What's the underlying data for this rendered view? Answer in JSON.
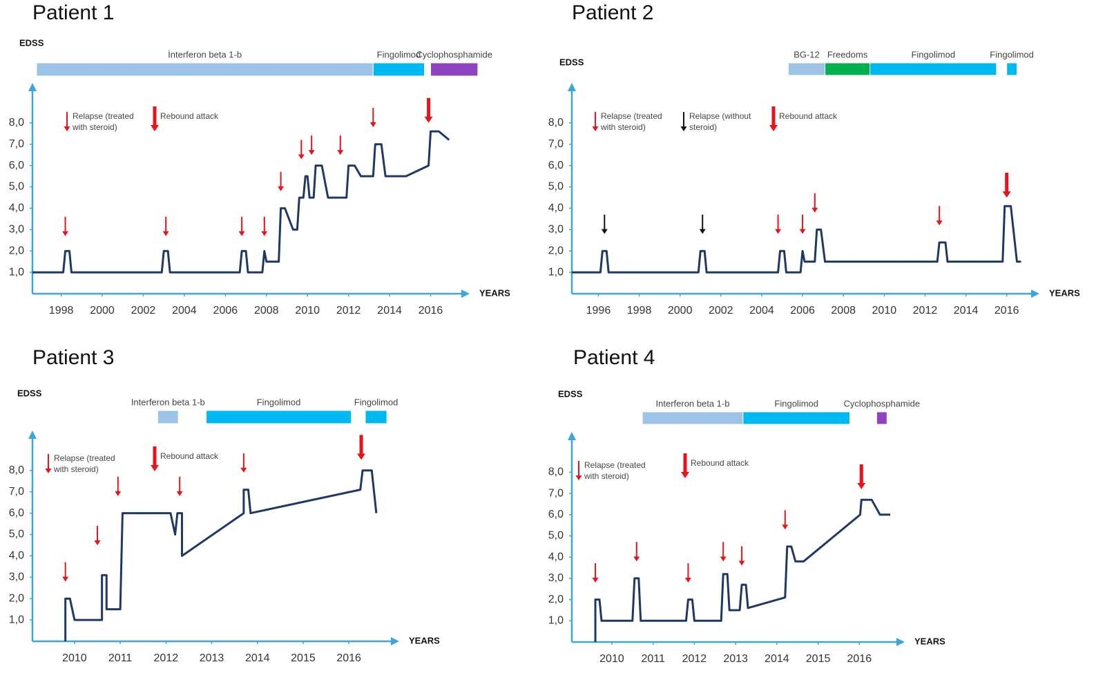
{
  "chart_data": [
    {
      "type": "line",
      "title": "Patient 1",
      "ylabel": "EDSS",
      "xlabel": "YEARS",
      "xlim": [
        1996.6,
        2017.9
      ],
      "ylim": [
        0,
        9.87
      ],
      "xticks": [
        1998,
        2000,
        2002,
        2004,
        2006,
        2008,
        2010,
        2012,
        2014,
        2016
      ],
      "yticks": [
        {
          "value": 1,
          "label": "1,0"
        },
        {
          "value": 2,
          "label": "2,0"
        },
        {
          "value": 3,
          "label": "3,0"
        },
        {
          "value": 4,
          "label": "4,0"
        },
        {
          "value": 5,
          "label": "5,0"
        },
        {
          "value": 6,
          "label": "6,0"
        },
        {
          "value": 7,
          "label": "7,0"
        },
        {
          "value": 8,
          "label": "8,0"
        }
      ],
      "treatments": [
        {
          "name": "İnterferon beta 1-b",
          "color": "#9dc3e6",
          "start": 1996.8,
          "end": 2013.2
        },
        {
          "name": "Fingolimod",
          "color": "#00b8f0",
          "start": 2013.2,
          "end": 2015.7
        },
        {
          "name": "Cyclophosphamide",
          "color": "#8e44c0",
          "start": 2016.0,
          "end": 2018.3
        }
      ],
      "events": [
        {
          "name": "Relapse (treated with steroid)",
          "color": "#e8141b",
          "style": "thin",
          "x": [
            1998.2,
            2003.1,
            2006.8,
            2007.9,
            2008.7,
            2009.7,
            2010.2,
            2011.6,
            2013.2
          ],
          "y": [
            2.7,
            2.7,
            2.7,
            2.7,
            4.8,
            6.3,
            6.5,
            6.5,
            7.8
          ]
        },
        {
          "name": "Rebound attack",
          "color": "#e8141b",
          "style": "thick",
          "x": [
            2015.9
          ],
          "y": [
            8.0
          ]
        }
      ],
      "series": [
        {
          "color": "#1f3864",
          "x": [
            1996.6,
            1998.1,
            1998.2,
            1998.4,
            1998.5,
            2002.9,
            2003,
            2003.2,
            2003.3,
            2006.7,
            2006.8,
            2007,
            2007.1,
            2007.8,
            2007.9,
            2008,
            2008.6,
            2008.7,
            2008.9,
            2009.3,
            2009.5,
            2009.6,
            2009.8,
            2009.9,
            2010,
            2010.1,
            2010.3,
            2010.4,
            2010.7,
            2011,
            2011.9,
            2012,
            2012.3,
            2012.6,
            2013.2,
            2013.3,
            2013.6,
            2013.8,
            2014.8,
            2015.9,
            2016,
            2016.4,
            2016.9
          ],
          "values": [
            1,
            1,
            2,
            2,
            1,
            1,
            2,
            2,
            1,
            1,
            2,
            2,
            1,
            1,
            2,
            1.5,
            1.5,
            4,
            4,
            3,
            3,
            4.5,
            4.5,
            5.5,
            5.5,
            4.5,
            4.5,
            6,
            6,
            4.5,
            4.5,
            6,
            6,
            5.5,
            5.5,
            7,
            7,
            5.5,
            5.5,
            6,
            7.6,
            7.6,
            7.2
          ]
        }
      ]
    },
    {
      "type": "line",
      "title": "Patient 2",
      "ylabel": "EDSS",
      "xlabel": "YEARS",
      "xlim": [
        1994.7,
        2017.6
      ],
      "ylim": [
        0,
        9.87
      ],
      "xticks": [
        1996,
        1998,
        2000,
        2002,
        2004,
        2006,
        2008,
        2010,
        2012,
        2014,
        2016
      ],
      "yticks": [
        {
          "value": 1,
          "label": "1,0"
        },
        {
          "value": 2,
          "label": "2,0"
        },
        {
          "value": 3,
          "label": "3,0"
        },
        {
          "value": 4,
          "label": "4,0"
        },
        {
          "value": 5,
          "label": "5,0"
        },
        {
          "value": 6,
          "label": "6,0"
        },
        {
          "value": 7,
          "label": "7,0"
        },
        {
          "value": 8,
          "label": "8,0"
        }
      ],
      "treatments": [
        {
          "name": "BG-12",
          "color": "#9dc3e6",
          "start": 2005.3,
          "end": 2007.1
        },
        {
          "name": "Freedoms",
          "color": "#00b050",
          "start": 2007.1,
          "end": 2009.3
        },
        {
          "name": "Fingolimod",
          "color": "#00b8f0",
          "start": 2009.3,
          "end": 2015.5
        },
        {
          "name": "Fingolimod",
          "color": "#00b8f0",
          "start": 2016.0,
          "end": 2016.5
        }
      ],
      "events": [
        {
          "name": "Relapse (treated with steroid)",
          "color": "#e8141b",
          "style": "thin",
          "x": [
            2004.8,
            2006.0,
            2006.6,
            2012.7
          ],
          "y": [
            2.8,
            2.8,
            3.8,
            3.2
          ]
        },
        {
          "name": "Relapse (without steroid)",
          "color": "#111111",
          "style": "thin",
          "x": [
            1996.3,
            2001.1
          ],
          "y": [
            2.8,
            2.8
          ]
        },
        {
          "name": "Rebound attack",
          "color": "#e8141b",
          "style": "thick",
          "x": [
            2016.0
          ],
          "y": [
            4.5
          ]
        }
      ],
      "series": [
        {
          "color": "#1f3864",
          "x": [
            1994.7,
            1996.1,
            1996.2,
            1996.4,
            1996.5,
            2000.9,
            2001,
            2001.2,
            2001.3,
            2004.8,
            2004.9,
            2005.1,
            2005.2,
            2005.9,
            2006,
            2006.1,
            2006.6,
            2006.7,
            2006.9,
            2007.1,
            2012.6,
            2012.7,
            2013,
            2013.1,
            2015.8,
            2015.9,
            2016.2,
            2016.5,
            2016.7
          ],
          "values": [
            1,
            1,
            2,
            2,
            1,
            1,
            2,
            2,
            1,
            1,
            2,
            2,
            1,
            1,
            2,
            1.5,
            1.5,
            3,
            3,
            1.5,
            1.5,
            2.4,
            2.4,
            1.5,
            1.5,
            4.1,
            4.1,
            1.5,
            1.5
          ]
        }
      ]
    },
    {
      "type": "line",
      "title": "Patient 3",
      "ylabel": "EDSS",
      "xlabel": "YEARS",
      "xlim": [
        2009.08,
        2017.1
      ],
      "ylim": [
        0,
        9.87
      ],
      "xticks": [
        2010,
        2011,
        2012,
        2013,
        2014,
        2015,
        2016
      ],
      "yticks": [
        {
          "value": 1,
          "label": "1,0"
        },
        {
          "value": 2,
          "label": "2,0"
        },
        {
          "value": 3,
          "label": "3,0"
        },
        {
          "value": 4,
          "label": "4,0"
        },
        {
          "value": 5,
          "label": "5,0"
        },
        {
          "value": 6,
          "label": "6,0"
        },
        {
          "value": 7,
          "label": "7,0"
        },
        {
          "value": 8,
          "label": "8,0"
        }
      ],
      "treatments": [
        {
          "name": "Interferon beta 1-b",
          "color": "#9dc3e6",
          "start": 2011.82,
          "end": 2012.27
        },
        {
          "name": "Fingolimod",
          "color": "#00b8f0",
          "start": 2012.88,
          "end": 2016.05
        },
        {
          "name": "Fingolimod",
          "color": "#00b8f0",
          "start": 2016.36,
          "end": 2016.83
        }
      ],
      "events": [
        {
          "name": "Relapse (treated with steroid)",
          "color": "#e8141b",
          "style": "thin",
          "x": [
            2009.8,
            2010.5,
            2010.95,
            2012.3,
            2013.7
          ],
          "y": [
            2.8,
            4.5,
            6.8,
            6.8,
            7.9
          ]
        },
        {
          "name": "Rebound attack",
          "color": "#e8141b",
          "style": "thick",
          "x": [
            2016.27
          ],
          "y": [
            8.5
          ]
        }
      ],
      "series": [
        {
          "color": "#1f3864",
          "x": [
            2009.8,
            2009.8,
            2009.9,
            2010,
            2010.6,
            2010.6,
            2010.7,
            2010.7,
            2011,
            2011.05,
            2012.1,
            2012.2,
            2012.25,
            2012.35,
            2012.35,
            2013.7,
            2013.7,
            2013.8,
            2013.85,
            2016.25,
            2016.3,
            2016.5,
            2016.6
          ],
          "values": [
            0,
            2,
            2,
            1,
            1,
            3.1,
            3.1,
            1.5,
            1.5,
            6,
            6,
            5,
            6,
            6,
            4,
            6,
            7.1,
            7.1,
            6,
            7.1,
            8,
            8,
            6
          ]
        }
      ]
    },
    {
      "type": "line",
      "title": "Patient 4",
      "ylabel": "EDSS",
      "xlabel": "YEARS",
      "xlim": [
        2009.03,
        2017.1
      ],
      "ylim": [
        0,
        9.9
      ],
      "xticks": [
        2010,
        2011,
        2012,
        2013,
        2014,
        2015,
        2016
      ],
      "yticks": [
        {
          "value": 1,
          "label": "1,0"
        },
        {
          "value": 2,
          "label": "2,0"
        },
        {
          "value": 3,
          "label": "3,0"
        },
        {
          "value": 4,
          "label": "4,0"
        },
        {
          "value": 5,
          "label": "5,0"
        },
        {
          "value": 6,
          "label": "6,0"
        },
        {
          "value": 7,
          "label": "7,0"
        },
        {
          "value": 8,
          "label": "8,0"
        }
      ],
      "treatments": [
        {
          "name": "Interferon beta 1-b",
          "color": "#9dc3e6",
          "start": 2010.74,
          "end": 2013.18
        },
        {
          "name": "Fingolimod",
          "color": "#00b8f0",
          "start": 2013.18,
          "end": 2015.77
        },
        {
          "name": "Cyclophosphamide",
          "color": "#8e44c0",
          "start": 2016.42,
          "end": 2016.67
        }
      ],
      "events": [
        {
          "name": "Relapse (treated with steroid)",
          "color": "#e8141b",
          "style": "thin",
          "x": [
            2009.6,
            2010.6,
            2011.85,
            2012.7,
            2013.15,
            2014.2
          ],
          "y": [
            2.8,
            3.8,
            2.8,
            3.8,
            3.6,
            5.3
          ]
        },
        {
          "name": "Rebound attack",
          "color": "#e8141b",
          "style": "thick",
          "x": [
            2016.05
          ],
          "y": [
            7.2
          ]
        }
      ],
      "series": [
        {
          "color": "#1f3864",
          "x": [
            2009.6,
            2009.6,
            2009.7,
            2009.75,
            2010.5,
            2010.55,
            2010.65,
            2010.7,
            2011.8,
            2011.85,
            2011.95,
            2012,
            2012.65,
            2012.7,
            2012.8,
            2012.85,
            2013.1,
            2013.15,
            2013.25,
            2013.3,
            2014.2,
            2014.25,
            2014.35,
            2014.45,
            2014.65,
            2016.02,
            2016.05,
            2016.3,
            2016.5,
            2016.75
          ],
          "values": [
            0,
            2,
            2,
            1,
            1,
            3,
            3,
            1,
            1,
            2,
            2,
            1,
            1,
            3.2,
            3.2,
            1.5,
            1.5,
            2.7,
            2.7,
            1.6,
            2.1,
            4.5,
            4.5,
            3.8,
            3.8,
            6,
            6.7,
            6.7,
            6,
            6
          ]
        }
      ]
    }
  ]
}
